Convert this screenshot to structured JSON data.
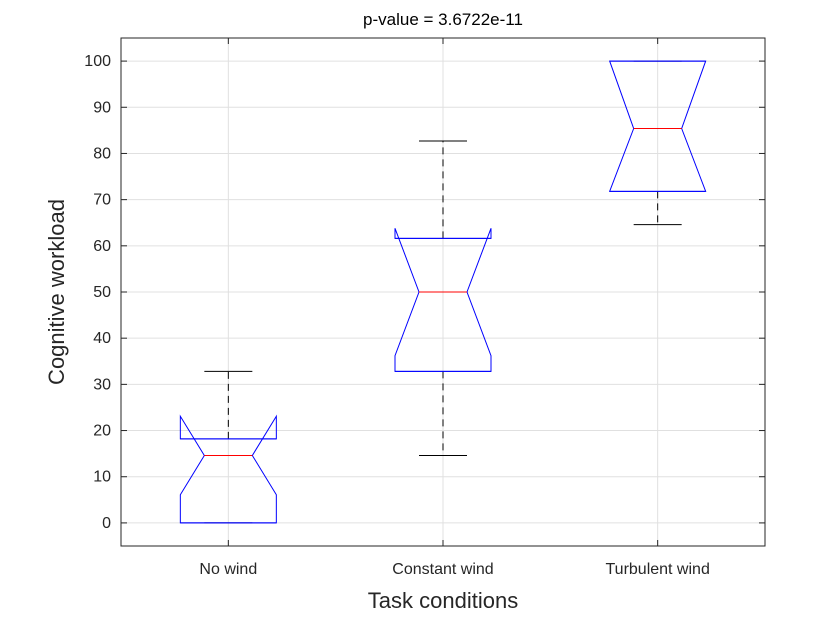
{
  "chart_data": {
    "type": "boxplot",
    "title": "p-value = 3.6722e-11",
    "xlabel": "Task conditions",
    "ylabel": "Cognitive workload",
    "ylim": [
      -5,
      105
    ],
    "yticks": [
      0,
      10,
      20,
      30,
      40,
      50,
      60,
      70,
      80,
      90,
      100
    ],
    "grid": true,
    "notched": true,
    "categories": [
      "No wind",
      "Constant wind",
      "Turbulent wind"
    ],
    "boxes": [
      {
        "whisker_low": 0,
        "q1": 0,
        "median": 14.6,
        "q3": 18.2,
        "whisker_high": 32.8,
        "notch_low": 6.1,
        "notch_high": 23.1
      },
      {
        "whisker_low": 14.6,
        "q1": 32.8,
        "median": 50.0,
        "q3": 61.6,
        "whisker_high": 82.7,
        "notch_low": 36.2,
        "notch_high": 63.8
      },
      {
        "whisker_low": 64.6,
        "q1": 71.8,
        "median": 85.4,
        "q3": 100,
        "whisker_high": 100,
        "notch_low": 71.8,
        "notch_high": 100
      }
    ],
    "colors": {
      "box": "#0000ff",
      "median": "#ff0000",
      "whisker": "#000000",
      "grid": "#e0e0e0",
      "axis": "#262626"
    }
  }
}
